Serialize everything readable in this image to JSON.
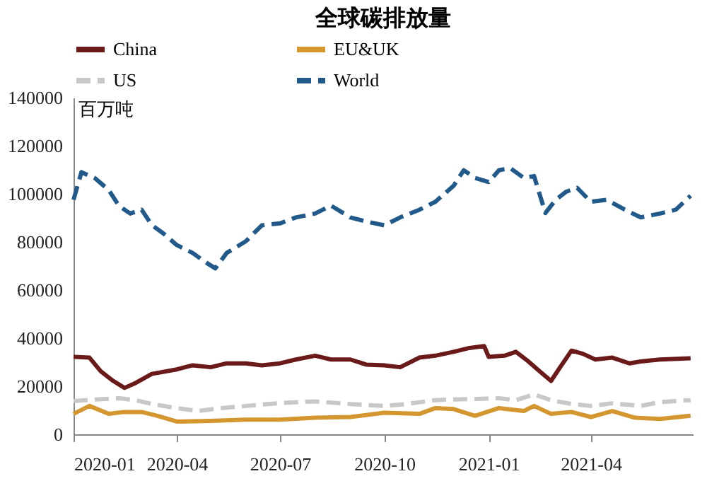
{
  "chart_data": {
    "type": "line",
    "title": "全球碳排放量",
    "ylabel": "百万吨",
    "xlim": [
      "2020-01-01",
      "2021-06-30"
    ],
    "xticks": [
      "2020-01",
      "2020-04",
      "2020-07",
      "2020-10",
      "2021-01",
      "2021-04"
    ],
    "ylim": [
      0,
      140000
    ],
    "yticks": [
      0,
      20000,
      40000,
      60000,
      80000,
      100000,
      120000,
      140000
    ],
    "grid": false,
    "legend": "top",
    "series": [
      {
        "name": "China",
        "color": "#6b1a1a",
        "line_style": "solid",
        "x": [
          "2020-01-01",
          "2020-01-15",
          "2020-01-25",
          "2020-02-05",
          "2020-02-15",
          "2020-02-25",
          "2020-03-10",
          "2020-04-01",
          "2020-04-15",
          "2020-05-01",
          "2020-05-15",
          "2020-06-01",
          "2020-06-15",
          "2020-07-01",
          "2020-07-15",
          "2020-08-01",
          "2020-08-15",
          "2020-09-01",
          "2020-09-15",
          "2020-10-01",
          "2020-10-15",
          "2020-11-01",
          "2020-11-15",
          "2020-12-01",
          "2020-12-15",
          "2020-12-28",
          "2021-01-01",
          "2021-01-15",
          "2021-01-25",
          "2021-02-05",
          "2021-02-15",
          "2021-02-25",
          "2021-03-05",
          "2021-03-15",
          "2021-03-25",
          "2021-04-05",
          "2021-04-20",
          "2021-05-05",
          "2021-05-15",
          "2021-06-01",
          "2021-06-28"
        ],
        "values": [
          32200,
          31900,
          26200,
          22200,
          19300,
          21400,
          25100,
          27000,
          28700,
          27900,
          29500,
          29500,
          28700,
          29500,
          31100,
          32700,
          31100,
          31100,
          29000,
          28700,
          27900,
          31900,
          32700,
          34300,
          35900,
          36700,
          32200,
          32700,
          34300,
          30300,
          26200,
          22200,
          27900,
          34800,
          33500,
          31100,
          31900,
          29500,
          30300,
          31100,
          31600
        ]
      },
      {
        "name": "EU&UK",
        "color": "#d4962f",
        "line_style": "solid",
        "x": [
          "2020-01-01",
          "2020-01-15",
          "2020-02-01",
          "2020-02-15",
          "2020-03-01",
          "2020-03-15",
          "2020-04-01",
          "2020-05-01",
          "2020-06-01",
          "2020-07-01",
          "2020-08-01",
          "2020-09-01",
          "2020-10-01",
          "2020-11-01",
          "2020-11-15",
          "2020-12-01",
          "2020-12-20",
          "2021-01-10",
          "2021-02-01",
          "2021-02-10",
          "2021-02-25",
          "2021-03-15",
          "2021-04-01",
          "2021-04-20",
          "2021-05-10",
          "2021-06-01",
          "2021-06-28"
        ],
        "values": [
          8500,
          11800,
          8500,
          9300,
          9300,
          7700,
          5300,
          5600,
          6100,
          6100,
          6900,
          7200,
          9000,
          8500,
          10900,
          10500,
          7700,
          10900,
          9700,
          11800,
          8500,
          9300,
          7200,
          9700,
          6900,
          6400,
          7700
        ]
      },
      {
        "name": "US",
        "color": "#c8c8c8",
        "line_style": "dashed",
        "x": [
          "2020-01-01",
          "2020-01-20",
          "2020-02-10",
          "2020-02-25",
          "2020-03-10",
          "2020-04-01",
          "2020-04-20",
          "2020-05-10",
          "2020-06-01",
          "2020-07-01",
          "2020-08-01",
          "2020-09-01",
          "2020-10-01",
          "2020-10-20",
          "2020-11-15",
          "2020-12-01",
          "2021-01-10",
          "2021-01-25",
          "2021-02-10",
          "2021-02-25",
          "2021-03-15",
          "2021-04-01",
          "2021-04-20",
          "2021-05-15",
          "2021-06-01",
          "2021-06-28"
        ],
        "values": [
          13800,
          14500,
          15000,
          14200,
          12600,
          10900,
          9700,
          10900,
          11800,
          13000,
          13700,
          12600,
          11800,
          12600,
          14200,
          14500,
          15000,
          14200,
          16600,
          14200,
          12600,
          11800,
          12900,
          11800,
          13400,
          14200
        ]
      },
      {
        "name": "World",
        "color": "#215a8a",
        "line_style": "dashed",
        "x": [
          "2020-01-01",
          "2020-01-08",
          "2020-01-20",
          "2020-02-01",
          "2020-02-10",
          "2020-02-20",
          "2020-03-01",
          "2020-03-10",
          "2020-03-20",
          "2020-04-01",
          "2020-04-15",
          "2020-04-25",
          "2020-05-05",
          "2020-05-15",
          "2020-06-01",
          "2020-06-15",
          "2020-07-01",
          "2020-07-15",
          "2020-08-01",
          "2020-08-15",
          "2020-09-01",
          "2020-09-15",
          "2020-10-01",
          "2020-10-15",
          "2020-11-01",
          "2020-11-15",
          "2020-12-01",
          "2020-12-10",
          "2020-12-20",
          "2021-01-01",
          "2021-01-10",
          "2021-01-20",
          "2021-02-01",
          "2021-02-10",
          "2021-02-20",
          "2021-03-01",
          "2021-03-10",
          "2021-03-20",
          "2021-04-01",
          "2021-04-15",
          "2021-05-01",
          "2021-05-15",
          "2021-06-01",
          "2021-06-15",
          "2021-06-28"
        ],
        "values": [
          97500,
          109000,
          106500,
          101600,
          95000,
          91800,
          93400,
          87000,
          83600,
          78700,
          75400,
          72000,
          69000,
          75400,
          80300,
          86900,
          87700,
          90200,
          91800,
          95100,
          90200,
          88500,
          86900,
          90200,
          93400,
          96700,
          103300,
          109800,
          106600,
          104900,
          109800,
          110700,
          106600,
          107400,
          92000,
          97500,
          100800,
          102500,
          96700,
          97500,
          93400,
          90200,
          91800,
          93400,
          99200
        ]
      }
    ]
  }
}
